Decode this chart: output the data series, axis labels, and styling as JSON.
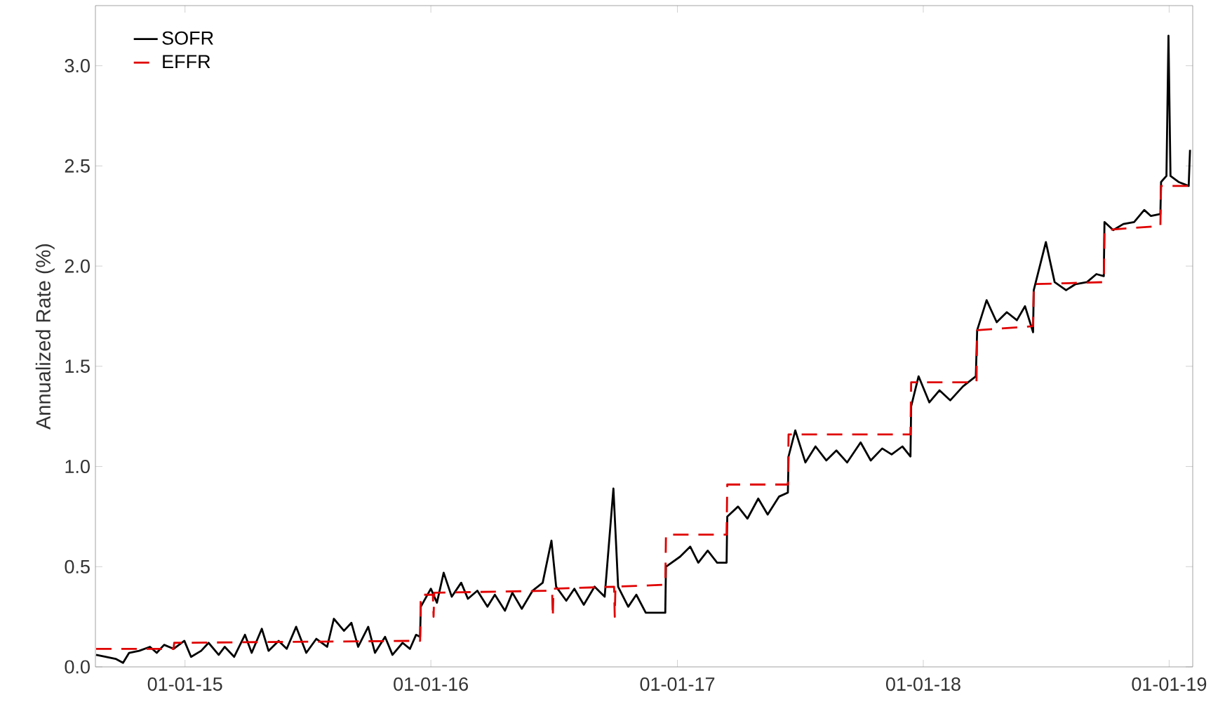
{
  "chart_data": {
    "type": "line",
    "ylabel": "Annualized Rate (%)",
    "xlim": [
      "2014-08-21",
      "2019-02-05"
    ],
    "ylim": [
      0,
      3.3
    ],
    "xticks": [
      {
        "value": "2015-01-01",
        "label": "01-01-15"
      },
      {
        "value": "2016-01-01",
        "label": "01-01-16"
      },
      {
        "value": "2017-01-01",
        "label": "01-01-17"
      },
      {
        "value": "2018-01-01",
        "label": "01-01-18"
      },
      {
        "value": "2019-01-01",
        "label": "01-01-19"
      }
    ],
    "yticks": [
      {
        "value": 0,
        "label": "0.0"
      },
      {
        "value": 0.5,
        "label": "0.5"
      },
      {
        "value": 1,
        "label": "1.0"
      },
      {
        "value": 1.5,
        "label": "1.5"
      },
      {
        "value": 2,
        "label": "2.0"
      },
      {
        "value": 2.5,
        "label": "2.5"
      },
      {
        "value": 3,
        "label": "3.0"
      }
    ],
    "grid": false,
    "legend": "top left",
    "marker": "none",
    "series": [
      {
        "name": "SOFR",
        "color": "#000000",
        "line_style": "solid",
        "x": [
          "2014-08-22",
          "2014-09-05",
          "2014-09-20",
          "2014-10-01",
          "2014-10-10",
          "2014-10-25",
          "2014-11-10",
          "2014-11-20",
          "2014-12-01",
          "2014-12-15",
          "2014-12-31",
          "2015-01-10",
          "2015-01-25",
          "2015-02-05",
          "2015-02-20",
          "2015-03-01",
          "2015-03-15",
          "2015-03-31",
          "2015-04-10",
          "2015-04-25",
          "2015-05-05",
          "2015-05-20",
          "2015-06-01",
          "2015-06-15",
          "2015-06-30",
          "2015-07-15",
          "2015-07-31",
          "2015-08-10",
          "2015-08-25",
          "2015-09-05",
          "2015-09-15",
          "2015-09-30",
          "2015-10-10",
          "2015-10-25",
          "2015-11-05",
          "2015-11-20",
          "2015-12-01",
          "2015-12-10",
          "2015-12-16",
          "2015-12-17",
          "2016-01-01",
          "2016-01-10",
          "2016-01-20",
          "2016-02-01",
          "2016-02-15",
          "2016-02-25",
          "2016-03-10",
          "2016-03-25",
          "2016-04-05",
          "2016-04-20",
          "2016-05-01",
          "2016-05-15",
          "2016-05-31",
          "2016-06-15",
          "2016-06-28",
          "2016-07-05",
          "2016-07-20",
          "2016-08-01",
          "2016-08-15",
          "2016-08-31",
          "2016-09-15",
          "2016-09-28",
          "2016-10-05",
          "2016-10-20",
          "2016-11-01",
          "2016-11-15",
          "2016-12-14",
          "2016-12-15",
          "2017-01-05",
          "2017-01-20",
          "2017-02-01",
          "2017-02-15",
          "2017-03-01",
          "2017-03-15",
          "2017-03-16",
          "2017-04-01",
          "2017-04-15",
          "2017-05-01",
          "2017-05-15",
          "2017-06-01",
          "2017-06-14",
          "2017-06-15",
          "2017-06-25",
          "2017-07-10",
          "2017-07-25",
          "2017-08-10",
          "2017-08-25",
          "2017-09-10",
          "2017-09-30",
          "2017-10-15",
          "2017-11-01",
          "2017-11-15",
          "2017-12-01",
          "2017-12-13",
          "2017-12-14",
          "2017-12-25",
          "2018-01-10",
          "2018-01-25",
          "2018-02-10",
          "2018-03-01",
          "2018-03-20",
          "2018-03-22",
          "2018-04-05",
          "2018-04-20",
          "2018-05-05",
          "2018-05-20",
          "2018-06-01",
          "2018-06-13",
          "2018-06-14",
          "2018-07-02",
          "2018-07-15",
          "2018-08-01",
          "2018-08-15",
          "2018-09-01",
          "2018-09-15",
          "2018-09-26",
          "2018-09-27",
          "2018-10-10",
          "2018-10-25",
          "2018-11-10",
          "2018-11-25",
          "2018-12-05",
          "2018-12-19",
          "2018-12-20",
          "2018-12-28",
          "2018-12-31",
          "2019-01-03",
          "2019-01-15",
          "2019-01-30",
          "2019-02-01"
        ],
        "values": [
          0.06,
          0.05,
          0.04,
          0.02,
          0.07,
          0.08,
          0.1,
          0.07,
          0.11,
          0.09,
          0.13,
          0.05,
          0.08,
          0.12,
          0.06,
          0.1,
          0.05,
          0.16,
          0.07,
          0.19,
          0.08,
          0.13,
          0.09,
          0.2,
          0.07,
          0.14,
          0.1,
          0.24,
          0.18,
          0.22,
          0.1,
          0.2,
          0.07,
          0.15,
          0.06,
          0.12,
          0.09,
          0.16,
          0.15,
          0.3,
          0.39,
          0.32,
          0.47,
          0.35,
          0.42,
          0.34,
          0.38,
          0.3,
          0.36,
          0.28,
          0.37,
          0.29,
          0.38,
          0.42,
          0.63,
          0.4,
          0.33,
          0.39,
          0.31,
          0.4,
          0.35,
          0.89,
          0.4,
          0.3,
          0.36,
          0.27,
          0.27,
          0.5,
          0.55,
          0.6,
          0.52,
          0.58,
          0.52,
          0.52,
          0.75,
          0.8,
          0.74,
          0.84,
          0.76,
          0.85,
          0.87,
          1.05,
          1.18,
          1.02,
          1.1,
          1.03,
          1.08,
          1.02,
          1.12,
          1.03,
          1.09,
          1.06,
          1.1,
          1.05,
          1.3,
          1.45,
          1.32,
          1.38,
          1.33,
          1.4,
          1.45,
          1.68,
          1.83,
          1.72,
          1.77,
          1.73,
          1.8,
          1.67,
          1.88,
          2.12,
          1.92,
          1.88,
          1.91,
          1.92,
          1.96,
          1.95,
          2.22,
          2.18,
          2.21,
          2.22,
          2.28,
          2.25,
          2.26,
          2.42,
          2.45,
          3.15,
          2.45,
          2.42,
          2.4,
          2.58
        ]
      },
      {
        "name": "EFFR",
        "color": "#e00000",
        "line_style": "dashed",
        "x": [
          "2014-08-22",
          "2014-12-15",
          "2014-12-16",
          "2015-12-16",
          "2015-12-17",
          "2016-01-04",
          "2016-01-05",
          "2016-01-06",
          "2016-06-29",
          "2016-06-30",
          "2016-07-01",
          "2016-09-29",
          "2016-09-30",
          "2016-10-01",
          "2016-12-14",
          "2016-12-15",
          "2017-03-15",
          "2017-03-16",
          "2017-06-14",
          "2017-06-15",
          "2017-12-13",
          "2017-12-14",
          "2018-03-21",
          "2018-03-22",
          "2018-06-13",
          "2018-06-14",
          "2018-09-26",
          "2018-09-27",
          "2018-12-19",
          "2018-12-20",
          "2019-02-01"
        ],
        "values": [
          0.09,
          0.09,
          0.12,
          0.13,
          0.36,
          0.36,
          0.25,
          0.37,
          0.38,
          0.25,
          0.39,
          0.4,
          0.25,
          0.4,
          0.41,
          0.66,
          0.66,
          0.91,
          0.91,
          1.16,
          1.16,
          1.42,
          1.42,
          1.68,
          1.7,
          1.91,
          1.92,
          2.18,
          2.2,
          2.4,
          2.4
        ]
      }
    ]
  }
}
